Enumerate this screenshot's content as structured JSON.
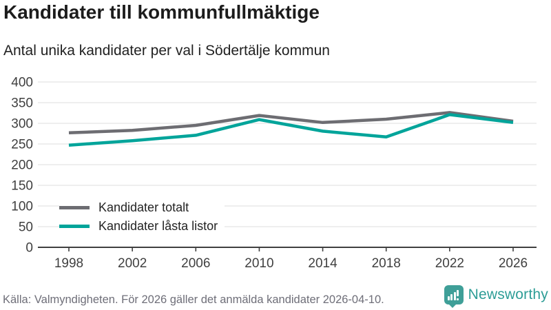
{
  "header": {
    "title": "Kandidater till kommunfullmäktige",
    "subtitle": "Antal unika kandidater per val i Södertälje kommun"
  },
  "chart_data": {
    "type": "line",
    "title": "Kandidater till kommunfullmäktige",
    "subtitle": "Antal unika kandidater per val i Södertälje kommun",
    "categories": [
      "1998",
      "2002",
      "2006",
      "2010",
      "2014",
      "2018",
      "2022",
      "2026"
    ],
    "series": [
      {
        "name": "Kandidater totalt",
        "color": "#6d6d72",
        "values": [
          277,
          283,
          295,
          319,
          302,
          310,
          326,
          305
        ]
      },
      {
        "name": "Kandidater låsta listor",
        "color": "#00a49a",
        "values": [
          247,
          258,
          271,
          309,
          281,
          267,
          321,
          302
        ]
      }
    ],
    "xlabel": "",
    "ylabel": "",
    "ylim": [
      0,
      400
    ],
    "ytick_step": 50,
    "grid": true,
    "legend_position": "inside-bottom-left",
    "axis_color": "#3f3f3f",
    "gridline_color": "#e3e3e3",
    "tick_label_color": "#3f3f3f"
  },
  "footer": {
    "source": "Källa: Valmyndigheten. För 2026 gäller det anmälda kandidater 2026-04-10.",
    "brand": "Newsworthy",
    "brand_color": "#2d9d96",
    "logo_icon": "bar-chart-speech-bubble"
  }
}
